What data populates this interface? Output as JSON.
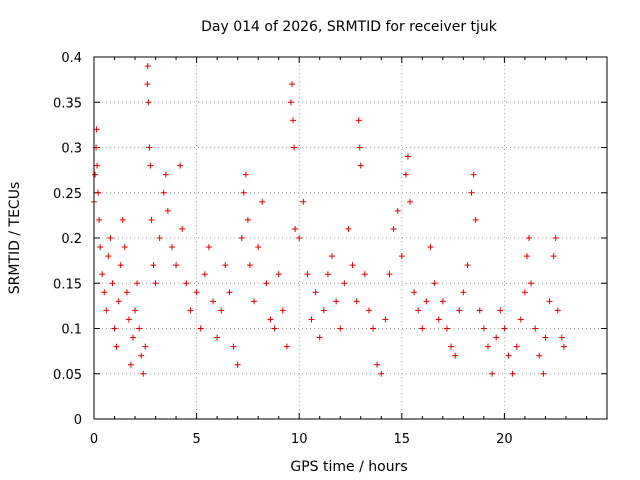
{
  "chart_data": {
    "type": "scatter",
    "title": "Day 014 of 2026, SRMTID for receiver tjuk",
    "xlabel": "GPS time / hours",
    "ylabel": "SRMTID / TECUs",
    "xlim": [
      0,
      25
    ],
    "ylim": [
      0,
      0.4
    ],
    "x_ticks": [
      "0",
      "5",
      "10",
      "15",
      "20"
    ],
    "y_ticks": [
      "0",
      "0.05",
      "0.1",
      "0.15",
      "0.2",
      "0.25",
      "0.3",
      "0.35",
      "0.4"
    ],
    "x_tick_values": [
      0,
      5,
      10,
      15,
      20
    ],
    "y_tick_values": [
      0,
      0.05,
      0.1,
      0.15,
      0.2,
      0.25,
      0.3,
      0.35,
      0.4
    ],
    "grid": true,
    "marker": "+",
    "color": "#e00000",
    "x_range_of_data": [
      0,
      22.9
    ],
    "series": [
      {
        "name": "SRMTID",
        "points": [
          [
            0.0,
            0.24
          ],
          [
            0.05,
            0.27
          ],
          [
            0.1,
            0.3
          ],
          [
            0.12,
            0.32
          ],
          [
            0.15,
            0.28
          ],
          [
            0.2,
            0.25
          ],
          [
            0.25,
            0.22
          ],
          [
            0.3,
            0.19
          ],
          [
            0.4,
            0.16
          ],
          [
            0.5,
            0.14
          ],
          [
            0.6,
            0.12
          ],
          [
            0.7,
            0.18
          ],
          [
            0.8,
            0.2
          ],
          [
            0.9,
            0.15
          ],
          [
            1.0,
            0.1
          ],
          [
            1.1,
            0.08
          ],
          [
            1.2,
            0.13
          ],
          [
            1.3,
            0.17
          ],
          [
            1.4,
            0.22
          ],
          [
            1.5,
            0.19
          ],
          [
            1.6,
            0.14
          ],
          [
            1.7,
            0.11
          ],
          [
            1.8,
            0.06
          ],
          [
            1.9,
            0.09
          ],
          [
            2.0,
            0.12
          ],
          [
            2.1,
            0.15
          ],
          [
            2.2,
            0.1
          ],
          [
            2.3,
            0.07
          ],
          [
            2.4,
            0.05
          ],
          [
            2.5,
            0.08
          ],
          [
            2.6,
            0.37
          ],
          [
            2.62,
            0.39
          ],
          [
            2.65,
            0.35
          ],
          [
            2.7,
            0.3
          ],
          [
            2.75,
            0.28
          ],
          [
            2.8,
            0.22
          ],
          [
            2.9,
            0.17
          ],
          [
            3.0,
            0.15
          ],
          [
            3.2,
            0.2
          ],
          [
            3.4,
            0.25
          ],
          [
            3.5,
            0.27
          ],
          [
            3.6,
            0.23
          ],
          [
            3.8,
            0.19
          ],
          [
            4.0,
            0.17
          ],
          [
            4.2,
            0.28
          ],
          [
            4.3,
            0.21
          ],
          [
            4.5,
            0.15
          ],
          [
            4.7,
            0.12
          ],
          [
            5.0,
            0.14
          ],
          [
            5.2,
            0.1
          ],
          [
            5.4,
            0.16
          ],
          [
            5.6,
            0.19
          ],
          [
            5.8,
            0.13
          ],
          [
            6.0,
            0.09
          ],
          [
            6.2,
            0.12
          ],
          [
            6.4,
            0.17
          ],
          [
            6.6,
            0.14
          ],
          [
            6.8,
            0.08
          ],
          [
            7.0,
            0.06
          ],
          [
            7.2,
            0.2
          ],
          [
            7.3,
            0.25
          ],
          [
            7.4,
            0.27
          ],
          [
            7.5,
            0.22
          ],
          [
            7.6,
            0.17
          ],
          [
            7.8,
            0.13
          ],
          [
            8.0,
            0.19
          ],
          [
            8.2,
            0.24
          ],
          [
            8.4,
            0.15
          ],
          [
            8.6,
            0.11
          ],
          [
            8.8,
            0.1
          ],
          [
            9.0,
            0.16
          ],
          [
            9.2,
            0.12
          ],
          [
            9.4,
            0.08
          ],
          [
            9.6,
            0.35
          ],
          [
            9.65,
            0.37
          ],
          [
            9.7,
            0.33
          ],
          [
            9.75,
            0.3
          ],
          [
            9.8,
            0.21
          ],
          [
            10.0,
            0.2
          ],
          [
            10.2,
            0.24
          ],
          [
            10.4,
            0.16
          ],
          [
            10.6,
            0.11
          ],
          [
            10.8,
            0.14
          ],
          [
            11.0,
            0.09
          ],
          [
            11.2,
            0.12
          ],
          [
            11.4,
            0.16
          ],
          [
            11.6,
            0.18
          ],
          [
            11.8,
            0.13
          ],
          [
            12.0,
            0.1
          ],
          [
            12.2,
            0.15
          ],
          [
            12.4,
            0.21
          ],
          [
            12.6,
            0.17
          ],
          [
            12.8,
            0.13
          ],
          [
            12.9,
            0.33
          ],
          [
            12.95,
            0.3
          ],
          [
            13.0,
            0.28
          ],
          [
            13.2,
            0.16
          ],
          [
            13.4,
            0.12
          ],
          [
            13.6,
            0.1
          ],
          [
            13.8,
            0.06
          ],
          [
            14.0,
            0.05
          ],
          [
            14.2,
            0.11
          ],
          [
            14.4,
            0.16
          ],
          [
            14.6,
            0.21
          ],
          [
            14.8,
            0.23
          ],
          [
            15.0,
            0.18
          ],
          [
            15.2,
            0.27
          ],
          [
            15.3,
            0.29
          ],
          [
            15.4,
            0.24
          ],
          [
            15.6,
            0.14
          ],
          [
            15.8,
            0.12
          ],
          [
            16.0,
            0.1
          ],
          [
            16.2,
            0.13
          ],
          [
            16.4,
            0.19
          ],
          [
            16.6,
            0.15
          ],
          [
            16.8,
            0.11
          ],
          [
            17.0,
            0.13
          ],
          [
            17.2,
            0.1
          ],
          [
            17.4,
            0.08
          ],
          [
            17.6,
            0.07
          ],
          [
            17.8,
            0.12
          ],
          [
            18.0,
            0.14
          ],
          [
            18.2,
            0.17
          ],
          [
            18.4,
            0.25
          ],
          [
            18.5,
            0.27
          ],
          [
            18.6,
            0.22
          ],
          [
            18.8,
            0.12
          ],
          [
            19.0,
            0.1
          ],
          [
            19.2,
            0.08
          ],
          [
            19.4,
            0.05
          ],
          [
            19.6,
            0.09
          ],
          [
            19.8,
            0.12
          ],
          [
            20.0,
            0.1
          ],
          [
            20.2,
            0.07
          ],
          [
            20.4,
            0.05
          ],
          [
            20.6,
            0.08
          ],
          [
            20.8,
            0.11
          ],
          [
            21.0,
            0.14
          ],
          [
            21.1,
            0.18
          ],
          [
            21.2,
            0.2
          ],
          [
            21.3,
            0.15
          ],
          [
            21.5,
            0.1
          ],
          [
            21.7,
            0.07
          ],
          [
            21.9,
            0.05
          ],
          [
            22.0,
            0.09
          ],
          [
            22.2,
            0.13
          ],
          [
            22.4,
            0.18
          ],
          [
            22.5,
            0.2
          ],
          [
            22.6,
            0.12
          ],
          [
            22.8,
            0.09
          ],
          [
            22.9,
            0.08
          ]
        ]
      }
    ]
  }
}
